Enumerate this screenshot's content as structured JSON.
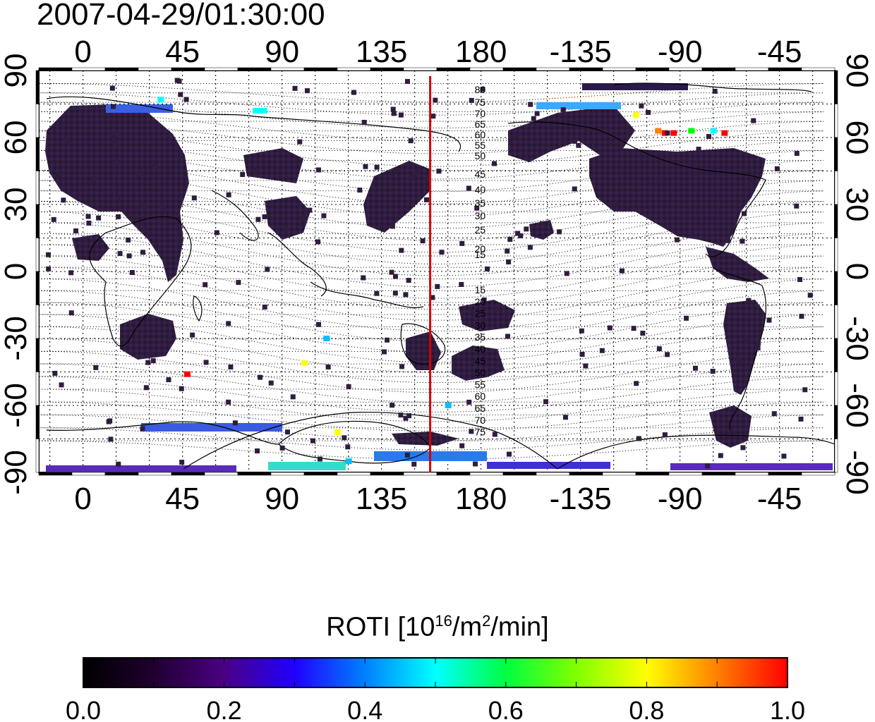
{
  "title": "2007-04-29/01:30:00",
  "colorbar": {
    "label_prefix": "ROTI  [10",
    "label_exp1": "16",
    "label_mid": "/m",
    "label_exp2": "2",
    "label_suffix": "/min]",
    "ticks": [
      "0.0",
      "0.2",
      "0.4",
      "0.6",
      "0.8",
      "1.0"
    ],
    "range": [
      0,
      1
    ],
    "colors": [
      "#000000",
      "#2a0045",
      "#4b0082",
      "#0000ff",
      "#00bfff",
      "#00ffff",
      "#00ff00",
      "#ffff00",
      "#ff8000",
      "#ff0000"
    ]
  },
  "map": {
    "lon_ticks_top": [
      "0",
      "45",
      "90",
      "135",
      "180",
      "-135",
      "-90",
      "-45"
    ],
    "lon_ticks_bottom": [
      "0",
      "45",
      "90",
      "135",
      "180",
      "-135",
      "-90",
      "-45"
    ],
    "lat_ticks_left": [
      "90",
      "60",
      "30",
      "0",
      "-30",
      "-60",
      "-90"
    ],
    "lat_ticks_right": [
      "90",
      "60",
      "30",
      "0",
      "-30",
      "-60",
      "-90"
    ],
    "lon_range": [
      -20,
      340
    ],
    "lat_range": [
      -90,
      90
    ],
    "meridian_marker_lon": 157,
    "marker_color": "#d00000",
    "mlat_labels_north": [
      "80",
      "75",
      "70",
      "65",
      "60",
      "55",
      "50",
      "45",
      "40",
      "35",
      "30",
      "25",
      "20",
      "15"
    ],
    "mlat_labels_south": [
      "15",
      "20",
      "25",
      "30",
      "35",
      "40",
      "45",
      "50",
      "55",
      "60",
      "65",
      "70",
      "75"
    ]
  },
  "chart_data": {
    "type": "heatmap",
    "title": "2007-04-29/01:30:00",
    "colorbar_label": "ROTI [10^16/m^2/min]",
    "value_range": [
      0.0,
      1.0
    ],
    "xlim": [
      -20,
      340
    ],
    "ylim": [
      -90,
      90
    ],
    "high_value_cells": [
      {
        "lon": 35,
        "lat": 77,
        "value": 0.55
      },
      {
        "lon": 78,
        "lon_end": 82,
        "lat": 72,
        "value": 0.6
      },
      {
        "lon": 47,
        "lat": -46,
        "value": 1.0
      },
      {
        "lon": 100,
        "lat": -41,
        "value": 0.75
      },
      {
        "lon": 110,
        "lat": -30,
        "value": 0.45
      },
      {
        "lon": -110,
        "lat": 70,
        "value": 0.8
      },
      {
        "lon": -100,
        "lat": 63,
        "value": 0.9
      },
      {
        "lon": -97,
        "lat": 62,
        "value": 0.95
      },
      {
        "lon": -93,
        "lat": 62,
        "value": 1.0
      },
      {
        "lon": -85,
        "lat": 63,
        "value": 0.7
      },
      {
        "lon": -75,
        "lat": 63,
        "value": 0.6
      },
      {
        "lon": -70,
        "lat": 62,
        "value": 0.95
      },
      {
        "lon": 120,
        "lat": -85,
        "value": 0.45
      },
      {
        "lon": 115,
        "lat": -72,
        "value": 0.75
      },
      {
        "lon": 165,
        "lat": -60,
        "value": 0.45
      }
    ]
  }
}
